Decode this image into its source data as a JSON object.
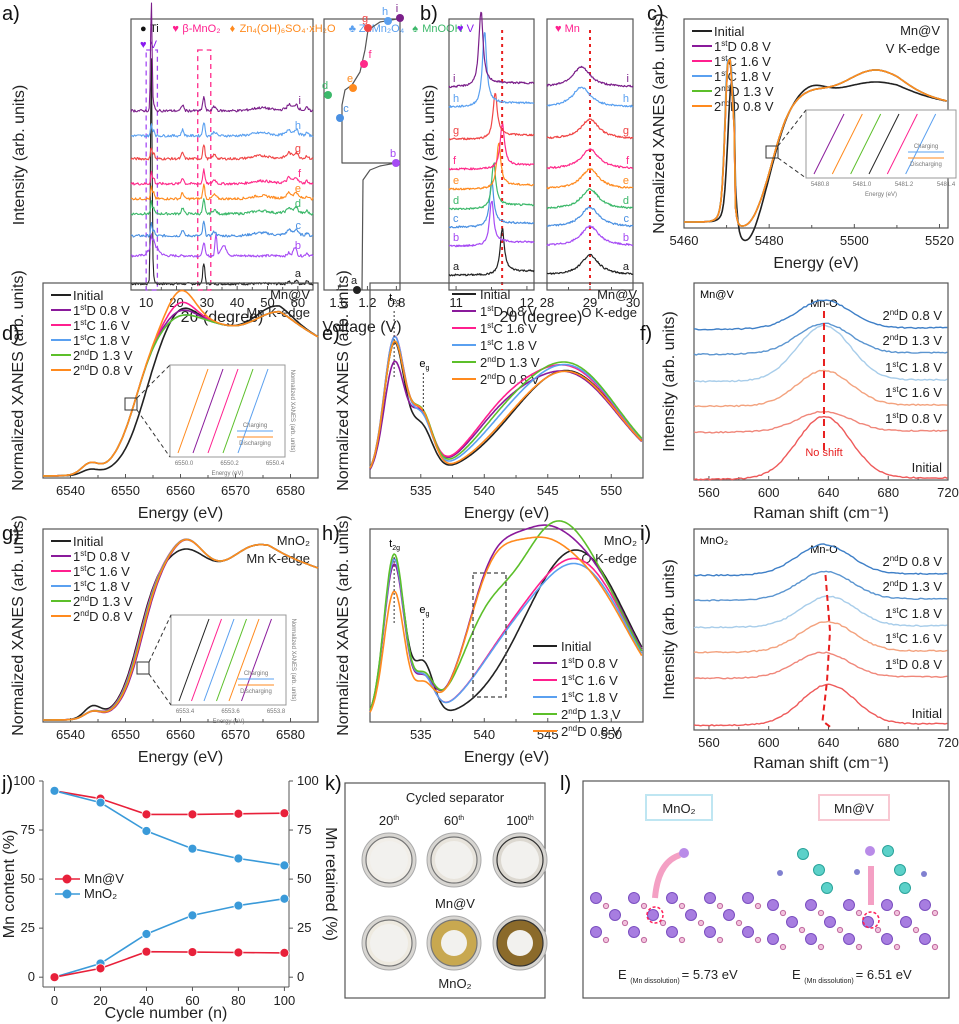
{
  "figure": {
    "panel_labels": [
      "a)",
      "b)",
      "c)",
      "d)",
      "e)",
      "f)",
      "g)",
      "h)",
      "i)",
      "j)",
      "k)",
      "l)"
    ],
    "series_styles": {
      "Initial": "#222222",
      "1stD 0.8 V": "#8a1a9b",
      "1stC 1.6 V": "#ff1f8e",
      "1stC 1.8 V": "#5aa0f0",
      "2ndD 1.3 V": "#5cbf2a",
      "2ndD 0.8 V": "#ff8a1e"
    },
    "xrd_colors": {
      "a": "#222222",
      "b": "#a64bf4",
      "c": "#4a90e2",
      "d": "#3cb86a",
      "e": "#ff8a1e",
      "f": "#ff2a8a",
      "g": "#f04545",
      "h": "#5aa0f0",
      "i": "#7b1f8a"
    }
  },
  "chart_data": [
    {
      "id": "a",
      "type": "line",
      "title": "",
      "xlabel": "2θ (degree)",
      "ylabel": "Intensity (arb. units)",
      "xlim": [
        5,
        65
      ],
      "xticks": [
        10,
        20,
        30,
        40,
        50,
        60
      ],
      "legend": [
        {
          "marker": "●",
          "label": "Ti",
          "color": "#111111"
        },
        {
          "marker": "♥",
          "label": "β-MnO₂",
          "color": "#ff1f8e"
        },
        {
          "marker": "♦",
          "label": "Zn₄(OH)₆SO₄·xH₂O",
          "color": "#ff8a1e"
        },
        {
          "marker": "♣",
          "label": "ZnMn₂O₄",
          "color": "#5aa0f0"
        },
        {
          "marker": "♠",
          "label": "MnOOH",
          "color": "#3cb86a"
        }
      ],
      "annotations": [
        "♥ V"
      ],
      "trace_labels": [
        "a",
        "b",
        "c",
        "d",
        "e",
        "f",
        "g",
        "h",
        "i"
      ],
      "peaks_2theta": {
        "V": 11.7,
        "beta_MnO2": 29.0
      }
    },
    {
      "id": "a-voltage",
      "type": "line",
      "xlabel": "Voltage (V)",
      "xlim": [
        1.8,
        0.75
      ],
      "xticks": [
        1.6,
        1.2,
        0.8
      ],
      "points": [
        {
          "label": "a",
          "voltage": 1.4
        },
        {
          "label": "b",
          "voltage": 0.8
        },
        {
          "label": "c",
          "voltage": 1.35
        },
        {
          "label": "d",
          "voltage": 1.8
        },
        {
          "label": "e",
          "voltage": 1.3
        },
        {
          "label": "f",
          "voltage": 1.05
        },
        {
          "label": "g",
          "voltage": 0.98
        },
        {
          "label": "h",
          "voltage": 0.85
        },
        {
          "label": "i",
          "voltage": 0.78
        }
      ]
    },
    {
      "id": "b-left",
      "type": "line",
      "annotation": "♥ V",
      "xlabel": "2θ (degree)",
      "ylabel": "Intensity (arb. units)",
      "xlim": [
        10.9,
        12.1
      ],
      "xticks": [
        11,
        12
      ],
      "reference_line": 11.65,
      "trace_labels": [
        "a",
        "b",
        "c",
        "d",
        "e",
        "f",
        "g",
        "h",
        "i"
      ],
      "peak_positions": [
        11.65,
        11.5,
        11.5,
        11.53,
        11.6,
        11.65,
        11.55,
        11.4,
        11.35
      ]
    },
    {
      "id": "b-right",
      "type": "line",
      "annotation": "♥ Mn",
      "xlim": [
        28,
        30
      ],
      "xticks": [
        28,
        29,
        30
      ],
      "reference_line": 29.0,
      "trace_labels": [
        "a",
        "b",
        "c",
        "d",
        "e",
        "f",
        "g",
        "h",
        "i"
      ]
    },
    {
      "id": "c",
      "type": "line",
      "xlabel": "Energy (eV)",
      "ylabel": "Normalized XANES (arb. units)",
      "xlim": [
        5460,
        5522
      ],
      "xticks": [
        5460,
        5480,
        5500,
        5520
      ],
      "corner_text": [
        "Mn@V",
        "V K-edge"
      ],
      "legend": [
        "Initial",
        "1stD 0.8 V",
        "1stC 1.6 V",
        "1stC 1.8 V",
        "2ndD 1.3 V",
        "2ndD 0.8 V"
      ],
      "inset": {
        "xlabel": "Energy (eV)",
        "ylabel": "Normalized XANES (arb. units)",
        "xticks": [
          "5480.8",
          "5481.0",
          "5481.2",
          "5481.4"
        ],
        "arrows": [
          "Charging",
          "Discharging"
        ]
      }
    },
    {
      "id": "d",
      "type": "line",
      "xlabel": "Energy (eV)",
      "ylabel": "Normalized XANES (arb. units)",
      "xlim": [
        6535,
        6585
      ],
      "xticks": [
        6540,
        6550,
        6560,
        6570,
        6580
      ],
      "corner_text": [
        "Mn@V",
        "Mn K-edge"
      ],
      "legend": [
        "Initial",
        "1stD 0.8 V",
        "1stC 1.6 V",
        "1stC 1.8 V",
        "2ndD 1.3 V",
        "2ndD 0.8 V"
      ],
      "inset": {
        "xlabel": "Energy (eV)",
        "ylabel": "Normalized XANES (arb. units)",
        "xticks": [
          "6550.0",
          "6550.2",
          "6550.4"
        ],
        "arrows": [
          "Charging",
          "Discharging"
        ]
      }
    },
    {
      "id": "e",
      "type": "line",
      "xlabel": "Energy (eV)",
      "ylabel": "Normalized XANES (arb. units)",
      "xlim": [
        531,
        552.5
      ],
      "xticks": [
        535,
        540,
        545,
        550
      ],
      "corner_text": [
        "Mn@V",
        "O K-edge"
      ],
      "peak_labels": [
        "t2g",
        "eg"
      ],
      "legend": [
        "Initial",
        "1stD 0.8 V",
        "1stC 1.6 V",
        "1stC 1.8 V",
        "2ndD 1.3 V",
        "2ndD 0.8 V"
      ]
    },
    {
      "id": "f",
      "type": "line",
      "xlabel": "Raman shift (cm⁻¹)",
      "ylabel": "Intensity (arb. units)",
      "xlim": [
        550,
        720
      ],
      "xticks": [
        560,
        600,
        640,
        680,
        720
      ],
      "corner_text": "Mn@V",
      "peak_label": "Mn-O",
      "note": "No shift",
      "peak_center": 637,
      "trace_labels": [
        "2ndD 0.8 V",
        "2ndD 1.3 V",
        "1stC 1.8 V",
        "1stC 1.6 V",
        "1stD 0.8 V",
        "Initial"
      ]
    },
    {
      "id": "g",
      "type": "line",
      "xlabel": "Energy (eV)",
      "ylabel": "Normalized XANES (arb. units)",
      "xlim": [
        6535,
        6585
      ],
      "xticks": [
        6540,
        6550,
        6560,
        6570,
        6580
      ],
      "corner_text": [
        "MnO₂",
        "Mn K-edge"
      ],
      "legend": [
        "Initial",
        "1stD 0.8 V",
        "1stC 1.6 V",
        "1stC 1.8 V",
        "2ndD 1.3 V",
        "2ndD 0.8 V"
      ],
      "inset": {
        "xlabel": "Energy (eV)",
        "ylabel": "Normalized XANES (arb. units)",
        "xticks": [
          "6553.4",
          "6553.6",
          "6553.8"
        ],
        "arrows": [
          "Charging",
          "Discharging"
        ]
      }
    },
    {
      "id": "h",
      "type": "line",
      "xlabel": "Energy (eV)",
      "ylabel": "Normalized XANES (arb. units)",
      "xlim": [
        531,
        552.5
      ],
      "xticks": [
        535,
        540,
        545,
        550
      ],
      "corner_text": [
        "MnO₂",
        "O K-edge"
      ],
      "peak_labels": [
        "t2g",
        "eg"
      ],
      "legend": [
        "Initial",
        "1stD 0.8 V",
        "1stC 1.6 V",
        "1stC 1.8 V",
        "2ndD 1.3 V",
        "2ndD 0.8 V"
      ]
    },
    {
      "id": "i",
      "type": "line",
      "xlabel": "Raman shift (cm⁻¹)",
      "ylabel": "Intensity (arb. units)",
      "xlim": [
        550,
        720
      ],
      "xticks": [
        560,
        600,
        640,
        680,
        720
      ],
      "corner_text": "MnO₂",
      "peak_label": "Mn-O",
      "trace_labels": [
        "2ndD 0.8 V",
        "2ndD 1.3 V",
        "1stC 1.8 V",
        "1stC 1.6 V",
        "1stD 0.8 V",
        "Initial"
      ],
      "peak_centers": [
        637,
        638,
        640,
        639,
        636,
        640
      ]
    },
    {
      "id": "j",
      "type": "line",
      "xlabel": "Cycle number (n)",
      "ylabel": "Mn content (%)",
      "ylabel_right": "Mn retained (%)",
      "x": [
        0,
        20,
        40,
        60,
        80,
        100
      ],
      "xlim": [
        -5,
        102
      ],
      "ylim": [
        -5,
        100
      ],
      "yticks": [
        0,
        25,
        50,
        75,
        100
      ],
      "legend_position": "center-left",
      "series": [
        {
          "name": "Mn@V",
          "color": "#e8203a",
          "axis": "left",
          "kind": "retained",
          "values": [
            95,
            91,
            83,
            83,
            83.3,
            83.6
          ]
        },
        {
          "name": "MnO₂",
          "color": "#3a9ad9",
          "axis": "left",
          "kind": "retained",
          "values": [
            95,
            89,
            74.5,
            65.5,
            60.5,
            57
          ]
        },
        {
          "name": "MnO₂",
          "color": "#3a9ad9",
          "axis": "left",
          "kind": "content",
          "values": [
            0,
            7,
            22,
            31.5,
            36.5,
            40
          ]
        },
        {
          "name": "Mn@V",
          "color": "#e8203a",
          "axis": "left",
          "kind": "content",
          "values": [
            0,
            4.5,
            13,
            12.8,
            12.6,
            12.4
          ]
        }
      ],
      "legend": [
        "Mn@V",
        "MnO₂"
      ]
    }
  ],
  "panel_k": {
    "title": "Cycled separator",
    "columns": [
      "20th",
      "60th",
      "100th"
    ],
    "rows": [
      "Mn@V",
      "MnO₂"
    ]
  },
  "panel_l": {
    "left_box": "MnO₂",
    "right_box": "Mn@V",
    "left_energy": "E (Mn dissolution) = 5.73 eV",
    "right_energy": "E (Mn dissolution) = 6.51 eV",
    "left_value": "= 5.73 eV",
    "right_value": "= 6.51 eV",
    "subscript": "(Mn dissolution)"
  }
}
